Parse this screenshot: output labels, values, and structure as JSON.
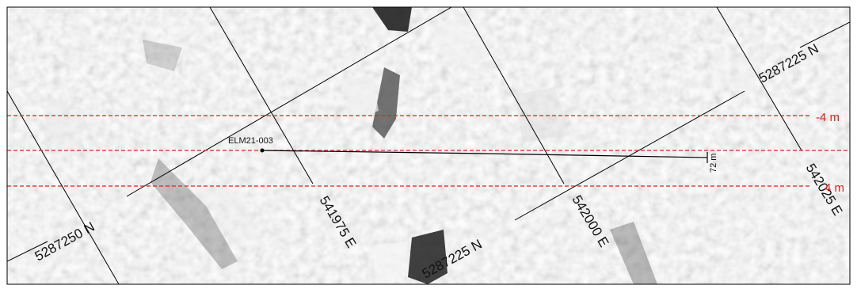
{
  "colors": {
    "reference_line": "#e02020",
    "grid_line": "#000000",
    "frame": "#000000"
  },
  "grid_labels": {
    "n_5287225_upper": "5287225 N",
    "n_5287250": "5287250 N",
    "n_5287225_lower": "5287225 N",
    "e_541975": "541975 E",
    "e_542000": "542000 E",
    "e_542025": "542025 E"
  },
  "reference_lines": {
    "upper": "-4 m",
    "lower": "4 m"
  },
  "drillhole": {
    "name": "ELM21-003",
    "length_label": "72 m"
  }
}
